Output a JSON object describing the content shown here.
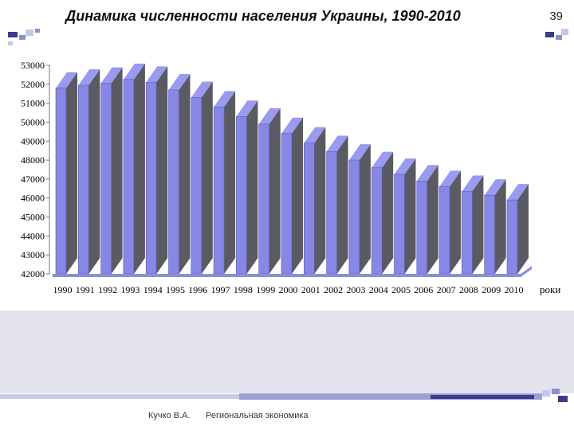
{
  "slide": {
    "title": "Динамика численности населения Украины, 1990-2010",
    "page_number": "39"
  },
  "footer": {
    "author": "Кучко В.А.",
    "course": "Региональная экономика"
  },
  "colors": {
    "bar_front": "#8787e6",
    "bar_side": "#5a5a62",
    "bar_top": "#9a9af0",
    "accent": "#b3b6e6",
    "band": "#e3e3f0"
  },
  "chart_data": {
    "type": "bar",
    "title": "",
    "xlabel": "роки",
    "ylabel": "",
    "ylim": [
      42000,
      53000
    ],
    "y_ticks": [
      42000,
      43000,
      44000,
      45000,
      46000,
      47000,
      48000,
      49000,
      50000,
      51000,
      52000,
      53000
    ],
    "categories": [
      "1990",
      "1991",
      "1992",
      "1993",
      "1994",
      "1995",
      "1996",
      "1997",
      "1998",
      "1999",
      "2000",
      "2001",
      "2002",
      "2003",
      "2004",
      "2005",
      "2006",
      "2007",
      "2008",
      "2009",
      "2010"
    ],
    "values": [
      51800,
      51950,
      52050,
      52250,
      52100,
      51700,
      51300,
      50800,
      50300,
      49900,
      49400,
      48900,
      48450,
      48000,
      47600,
      47250,
      46900,
      46600,
      46350,
      46150,
      45900
    ],
    "grid": false,
    "style": "3d-columns"
  }
}
